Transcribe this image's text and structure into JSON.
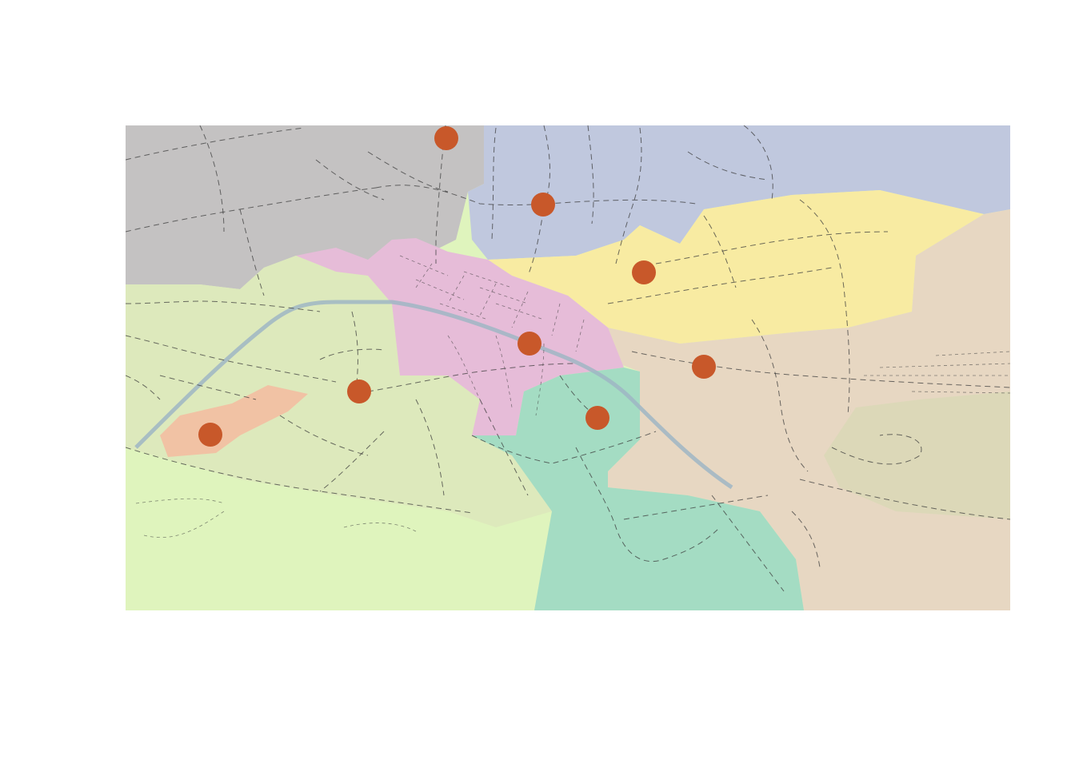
{
  "map": {
    "colors": {
      "zone_grey": "#c4c2c2",
      "zone_blue": "#c0c8de",
      "zone_yellow": "#f8eba2",
      "zone_pink": "#e6bcd8",
      "zone_tan": "#e7d7c2",
      "zone_green": "#dde9bc",
      "zone_lightgreen": "#dff4bd",
      "zone_mint": "#a4dcc3",
      "zone_salmon": "#f1c2a4",
      "zone_olive": "#dcd8b8",
      "point": "#c8582a",
      "river": "#9fb6c4"
    },
    "point_count": 8
  }
}
